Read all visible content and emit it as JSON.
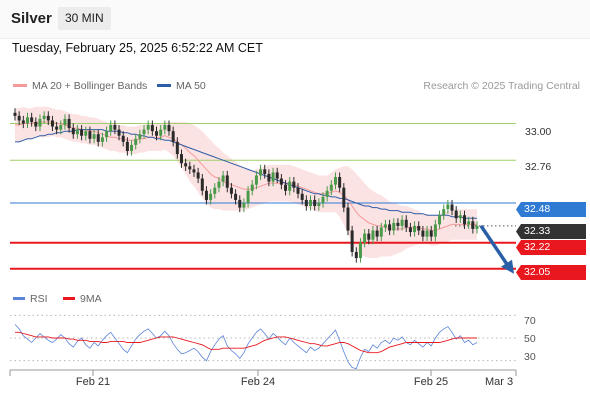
{
  "header": {
    "symbol": "Silver",
    "timeframe": "30 MIN"
  },
  "timestamp": "Tuesday, February 25, 2025 6:52:22 AM CET",
  "legend": {
    "items": [
      {
        "label": "MA 20 + Bollinger Bands",
        "color": "#f59a9a"
      },
      {
        "label": "MA 50",
        "color": "#2e5da8"
      }
    ]
  },
  "credit": "Research © 2025 Trading Central",
  "rsi_legend": {
    "items": [
      {
        "label": "RSI",
        "color": "#5b84d8"
      },
      {
        "label": "9MA",
        "color": "#e8181e"
      }
    ]
  },
  "chart_data": {
    "type": "candlestick",
    "price_axis": {
      "min": 31.95,
      "max": 33.18
    },
    "levels": [
      {
        "value": 33.0,
        "label": "33.00",
        "kind": "resistance",
        "color": "#9fce6a"
      },
      {
        "value": 32.76,
        "label": "32.76",
        "kind": "resistance",
        "color": "#9fce6a"
      },
      {
        "value": 32.48,
        "label": "32.48",
        "kind": "pivot",
        "color": "#2f7ad3"
      },
      {
        "value": 32.33,
        "label": "32.33",
        "kind": "last",
        "color": "#333333"
      },
      {
        "value": 32.22,
        "label": "32.22",
        "kind": "target",
        "color": "#e8181e"
      },
      {
        "value": 32.05,
        "label": "32.05",
        "kind": "target",
        "color": "#e8181e"
      }
    ],
    "close_series": [
      33.05,
      33.02,
      33.0,
      33.04,
      33.01,
      32.98,
      33.03,
      33.05,
      33.02,
      32.98,
      32.96,
      32.99,
      33.03,
      32.97,
      32.93,
      32.96,
      32.92,
      32.95,
      32.9,
      32.93,
      32.88,
      32.91,
      32.95,
      32.99,
      32.96,
      32.92,
      32.88,
      32.82,
      32.86,
      32.9,
      32.93,
      32.96,
      32.99,
      32.95,
      32.92,
      32.96,
      32.99,
      32.95,
      32.88,
      32.8,
      32.74,
      32.72,
      32.7,
      32.68,
      32.64,
      32.56,
      32.5,
      32.54,
      32.58,
      32.62,
      32.66,
      32.58,
      32.54,
      32.5,
      32.45,
      32.48,
      32.56,
      32.6,
      32.66,
      32.7,
      32.67,
      32.62,
      32.68,
      32.64,
      32.6,
      32.56,
      32.62,
      32.58,
      32.54,
      32.5,
      32.46,
      32.5,
      32.46,
      32.48,
      32.52,
      32.56,
      32.6,
      32.65,
      32.58,
      32.45,
      32.3,
      32.16,
      32.12,
      32.22,
      32.28,
      32.24,
      32.3,
      32.26,
      32.32,
      32.34,
      32.3,
      32.35,
      32.33,
      32.37,
      32.32,
      32.29,
      32.33,
      32.3,
      32.26,
      32.3,
      32.26,
      32.34,
      32.4,
      32.44,
      32.47,
      32.43,
      32.38,
      32.4,
      32.34,
      32.36,
      32.31,
      32.33
    ],
    "ma20_series": [
      32.99,
      32.99,
      33.0,
      33.0,
      33.0,
      33.01,
      33.01,
      33.01,
      33.01,
      33.01,
      33.0,
      33.0,
      32.99,
      32.98,
      32.97,
      32.97,
      32.96,
      32.96,
      32.95,
      32.95,
      32.94,
      32.93,
      32.92,
      32.91,
      32.91,
      32.9,
      32.9,
      32.89,
      32.89,
      32.89,
      32.9,
      32.9,
      32.91,
      32.91,
      32.91,
      32.91,
      32.92,
      32.91,
      32.9,
      32.88,
      32.86,
      32.84,
      32.81,
      32.79,
      32.76,
      32.73,
      32.7,
      32.67,
      32.65,
      32.64,
      32.62,
      32.61,
      32.6,
      32.59,
      32.58,
      32.57,
      32.57,
      32.57,
      32.58,
      32.59,
      32.6,
      32.61,
      32.61,
      32.61,
      32.61,
      32.61,
      32.61,
      32.6,
      32.59,
      32.58,
      32.57,
      32.56,
      32.55,
      32.54,
      32.54,
      32.54,
      32.55,
      32.56,
      32.55,
      32.53,
      32.5,
      32.46,
      32.42,
      32.39,
      32.37,
      32.35,
      32.34,
      32.33,
      32.33,
      32.32,
      32.31,
      32.31,
      32.31,
      32.31,
      32.32,
      32.32,
      32.32,
      32.32,
      32.31,
      32.31,
      32.3,
      32.3,
      32.31,
      32.32,
      32.33,
      32.34,
      32.34,
      32.34,
      32.34,
      32.34,
      32.34,
      32.34
    ],
    "ma50_series": [
      32.88,
      32.88,
      32.89,
      32.9,
      32.9,
      32.91,
      32.92,
      32.92,
      32.93,
      32.93,
      32.94,
      32.94,
      32.95,
      32.95,
      32.95,
      32.96,
      32.96,
      32.96,
      32.96,
      32.96,
      32.96,
      32.96,
      32.95,
      32.95,
      32.95,
      32.95,
      32.94,
      32.94,
      32.93,
      32.93,
      32.92,
      32.92,
      32.91,
      32.91,
      32.9,
      32.9,
      32.89,
      32.89,
      32.88,
      32.87,
      32.86,
      32.85,
      32.84,
      32.83,
      32.82,
      32.81,
      32.8,
      32.79,
      32.78,
      32.77,
      32.76,
      32.75,
      32.74,
      32.73,
      32.72,
      32.71,
      32.7,
      32.69,
      32.68,
      32.67,
      32.66,
      32.65,
      32.64,
      32.63,
      32.62,
      32.61,
      32.6,
      32.59,
      32.58,
      32.57,
      32.56,
      32.55,
      32.54,
      32.54,
      32.53,
      32.53,
      32.52,
      32.52,
      32.51,
      32.51,
      32.5,
      32.49,
      32.48,
      32.47,
      32.46,
      32.46,
      32.45,
      32.45,
      32.44,
      32.44,
      32.43,
      32.43,
      32.43,
      32.42,
      32.42,
      32.42,
      32.41,
      32.41,
      32.41,
      32.4,
      32.4,
      32.4,
      32.4,
      32.4,
      32.4,
      32.39,
      32.39,
      32.39,
      32.38,
      32.38,
      32.38,
      32.38
    ],
    "band_width_series": [
      0.11,
      0.11,
      0.11,
      0.1,
      0.1,
      0.1,
      0.1,
      0.1,
      0.1,
      0.09,
      0.09,
      0.09,
      0.09,
      0.09,
      0.09,
      0.09,
      0.09,
      0.09,
      0.09,
      0.09,
      0.09,
      0.09,
      0.09,
      0.09,
      0.09,
      0.09,
      0.09,
      0.09,
      0.09,
      0.09,
      0.09,
      0.09,
      0.09,
      0.09,
      0.09,
      0.09,
      0.09,
      0.1,
      0.11,
      0.13,
      0.15,
      0.17,
      0.19,
      0.2,
      0.21,
      0.22,
      0.22,
      0.22,
      0.21,
      0.2,
      0.19,
      0.18,
      0.17,
      0.16,
      0.15,
      0.14,
      0.13,
      0.12,
      0.12,
      0.12,
      0.12,
      0.12,
      0.12,
      0.12,
      0.12,
      0.12,
      0.12,
      0.12,
      0.12,
      0.12,
      0.12,
      0.12,
      0.12,
      0.12,
      0.12,
      0.12,
      0.13,
      0.14,
      0.16,
      0.19,
      0.22,
      0.24,
      0.25,
      0.25,
      0.24,
      0.23,
      0.22,
      0.21,
      0.2,
      0.19,
      0.18,
      0.17,
      0.16,
      0.15,
      0.14,
      0.13,
      0.12,
      0.11,
      0.1,
      0.1,
      0.1,
      0.1,
      0.1,
      0.1,
      0.1,
      0.1,
      0.1,
      0.1,
      0.1,
      0.1,
      0.1,
      0.1
    ],
    "rsi": {
      "axis": {
        "min": 20,
        "max": 80,
        "ticks": [
          "70",
          "50",
          "30"
        ]
      },
      "rsi_series": [
        62,
        58,
        52,
        49,
        46,
        50,
        54,
        51,
        48,
        46,
        49,
        53,
        50,
        45,
        42,
        47,
        50,
        44,
        41,
        46,
        43,
        48,
        52,
        55,
        50,
        45,
        40,
        37,
        43,
        49,
        53,
        56,
        58,
        54,
        50,
        52,
        56,
        52,
        45,
        40,
        36,
        37,
        39,
        41,
        38,
        33,
        30,
        38,
        44,
        49,
        52,
        43,
        39,
        36,
        32,
        37,
        45,
        50,
        55,
        58,
        54,
        49,
        54,
        51,
        47,
        44,
        50,
        46,
        43,
        40,
        37,
        42,
        39,
        41,
        45,
        49,
        53,
        57,
        48,
        38,
        29,
        24,
        23,
        33,
        40,
        38,
        44,
        41,
        46,
        48,
        45,
        50,
        48,
        51,
        46,
        44,
        48,
        45,
        42,
        46,
        43,
        50,
        55,
        58,
        60,
        55,
        49,
        52,
        46,
        48,
        44,
        46
      ],
      "ma9_series": [
        55,
        55,
        54,
        53,
        52,
        51,
        51,
        51,
        51,
        50,
        50,
        50,
        50,
        49,
        49,
        48,
        48,
        48,
        47,
        47,
        47,
        46,
        46,
        47,
        47,
        47,
        47,
        46,
        46,
        46,
        46,
        47,
        48,
        49,
        50,
        51,
        51,
        51,
        51,
        50,
        49,
        48,
        47,
        46,
        45,
        44,
        42,
        40,
        40,
        40,
        41,
        41,
        41,
        41,
        41,
        41,
        42,
        43,
        44,
        46,
        48,
        49,
        50,
        51,
        51,
        51,
        50,
        49,
        48,
        47,
        46,
        45,
        45,
        44,
        43,
        43,
        44,
        45,
        46,
        46,
        45,
        43,
        41,
        39,
        38,
        37,
        37,
        37,
        38,
        40,
        42,
        43,
        44,
        45,
        46,
        46,
        46,
        46,
        46,
        46,
        46,
        46,
        46,
        47,
        48,
        49,
        50,
        50,
        50,
        50,
        50,
        50
      ]
    },
    "x_axis": {
      "labels": [
        "Feb 21",
        "Feb 24",
        "Feb 25",
        "Mar 3"
      ]
    },
    "forecast": {
      "from": 32.33,
      "to": 32.05,
      "direction": "down"
    }
  }
}
